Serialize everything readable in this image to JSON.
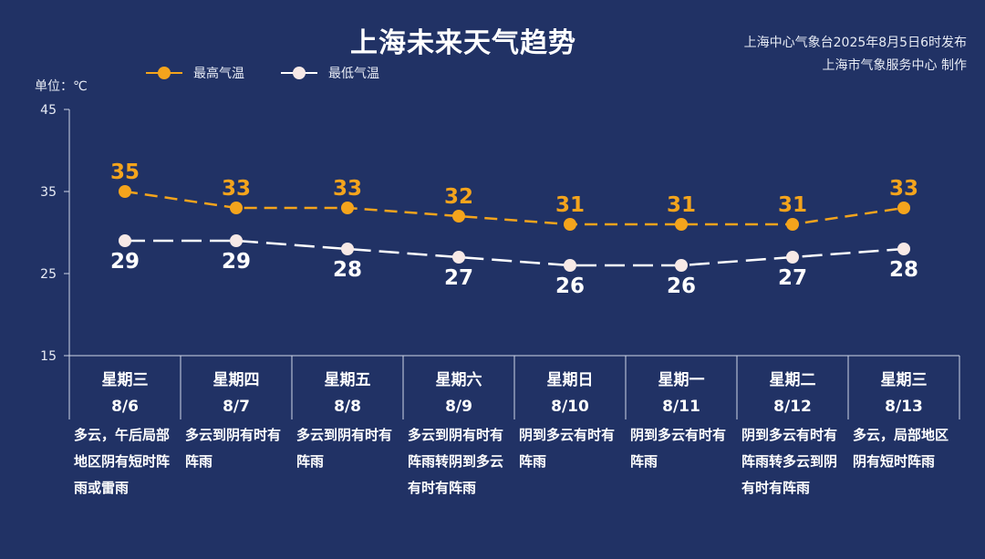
{
  "title": "上海未来天气趋势",
  "publisher": {
    "line1": "上海中心气象台2025年8月5日6时发布",
    "line2": "上海市气象服务中心 制作"
  },
  "unit_label": "单位：℃",
  "colors": {
    "background": "#213265",
    "high": "#f4a41c",
    "low": "#ffffff",
    "low_dot": "#f7e9e6"
  },
  "chart_data": {
    "type": "line",
    "title": "上海未来天气趋势",
    "ylabel": "单位：℃",
    "ylim": [
      15,
      45
    ],
    "yticks": [
      15,
      25,
      35,
      45
    ],
    "legend_position": "top-left",
    "categories": [
      {
        "weekday": "星期三",
        "date": "8/6"
      },
      {
        "weekday": "星期四",
        "date": "8/7"
      },
      {
        "weekday": "星期五",
        "date": "8/8"
      },
      {
        "weekday": "星期六",
        "date": "8/9"
      },
      {
        "weekday": "星期日",
        "date": "8/10"
      },
      {
        "weekday": "星期一",
        "date": "8/11"
      },
      {
        "weekday": "星期二",
        "date": "8/12"
      },
      {
        "weekday": "星期三",
        "date": "8/13"
      }
    ],
    "series": [
      {
        "name": "最高气温",
        "values": [
          35,
          33,
          33,
          32,
          31,
          31,
          31,
          33
        ]
      },
      {
        "name": "最低气温",
        "values": [
          29,
          29,
          28,
          27,
          26,
          26,
          27,
          28
        ]
      }
    ]
  },
  "descriptions": [
    "多云，午后局部地区阴有短时阵雨或雷雨",
    "多云到阴有时有阵雨",
    "多云到阴有时有阵雨",
    "多云到阴有时有阵雨转阴到多云有时有阵雨",
    "阴到多云有时有阵雨",
    "阴到多云有时有阵雨",
    "阴到多云有时有阵雨转多云到阴有时有阵雨",
    "多云，局部地区阴有短时阵雨"
  ]
}
